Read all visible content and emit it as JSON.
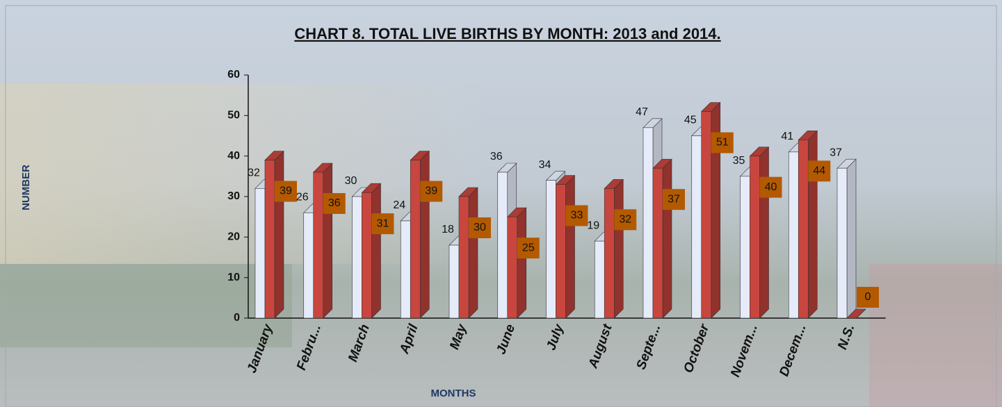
{
  "chart_data": {
    "type": "bar3d",
    "title": "CHART 8. TOTAL LIVE BIRTHS BY MONTH: 2013 and 2014.",
    "x_label": "MONTHS",
    "y_label": "NUMBER",
    "categories": [
      "January",
      "Febru...",
      "March",
      "April",
      "May",
      "June",
      "July",
      "August",
      "Septe...",
      "October",
      "Novem...",
      "Decem...",
      "N.S."
    ],
    "series": [
      {
        "color": "#e6ebfa",
        "values": [
          32,
          26,
          30,
          24,
          18,
          36,
          34,
          19,
          47,
          45,
          35,
          41,
          37
        ]
      },
      {
        "color": "#c9463f",
        "values": [
          39,
          36,
          31,
          39,
          30,
          25,
          33,
          32,
          37,
          51,
          40,
          44,
          0
        ]
      }
    ],
    "ylim": [
      0,
      60
    ],
    "yticks": [
      0,
      10,
      20,
      30,
      40,
      50,
      60
    ]
  }
}
